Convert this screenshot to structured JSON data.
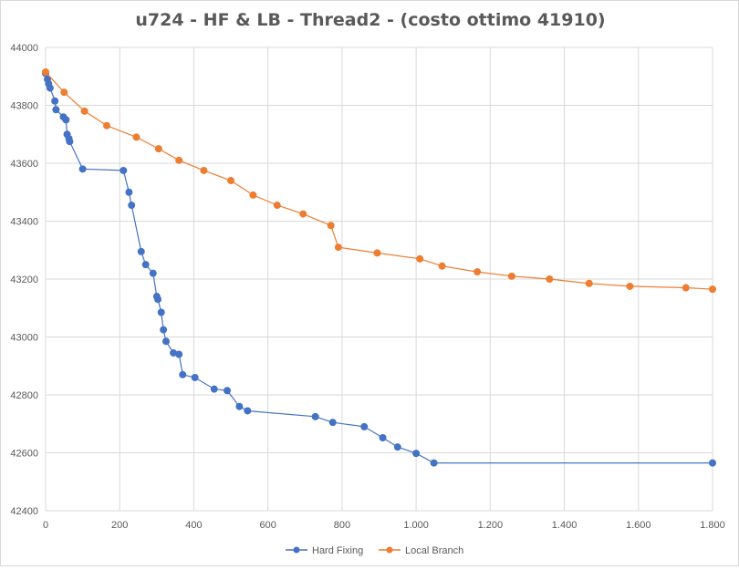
{
  "chart_data": {
    "type": "scatter",
    "title": "u724 - HF & LB - Thread2 - (costo ottimo 41910)",
    "xlabel": "",
    "ylabel": "",
    "xlim": [
      0,
      1800
    ],
    "ylim": [
      42400,
      44000
    ],
    "x_ticks": [
      0,
      200,
      400,
      600,
      800,
      1000,
      1200,
      1400,
      1600,
      1800
    ],
    "x_tick_labels": [
      "0",
      "200",
      "400",
      "600",
      "800",
      "1.000",
      "1.200",
      "1.400",
      "1.600",
      "1.800"
    ],
    "y_ticks": [
      42400,
      42600,
      42800,
      43000,
      43200,
      43400,
      43600,
      43800,
      44000
    ],
    "y_tick_labels": [
      "42400",
      "42600",
      "42800",
      "43000",
      "43200",
      "43400",
      "43600",
      "43800",
      "44000"
    ],
    "grid": true,
    "legend_position": "bottom",
    "series": [
      {
        "name": "Hard Fixing",
        "color": "#4472c4",
        "x": [
          0,
          5,
          8,
          12,
          25,
          28,
          48,
          55,
          58,
          63,
          65,
          100,
          210,
          225,
          232,
          258,
          270,
          290,
          300,
          303,
          312,
          318,
          325,
          345,
          360,
          370,
          403,
          455,
          490,
          523,
          545,
          728,
          775,
          860,
          910,
          950,
          1000,
          1048,
          1800
        ],
        "y": [
          43910,
          43890,
          43875,
          43860,
          43815,
          43785,
          43760,
          43750,
          43700,
          43685,
          43675,
          43580,
          43575,
          43500,
          43455,
          43295,
          43250,
          43220,
          43140,
          43130,
          43085,
          43025,
          42985,
          42945,
          42940,
          42870,
          42860,
          42820,
          42815,
          42760,
          42745,
          42725,
          42705,
          42690,
          42652,
          42620,
          42598,
          42565,
          42565
        ]
      },
      {
        "name": "Local Branch",
        "color": "#ed7d31",
        "x": [
          0,
          50,
          105,
          165,
          245,
          305,
          360,
          427,
          500,
          560,
          625,
          695,
          770,
          790,
          895,
          1010,
          1070,
          1165,
          1258,
          1360,
          1467,
          1577,
          1728,
          1800
        ],
        "y": [
          43915,
          43845,
          43780,
          43730,
          43690,
          43650,
          43610,
          43575,
          43540,
          43490,
          43455,
          43425,
          43385,
          43310,
          43290,
          43270,
          43245,
          43225,
          43210,
          43200,
          43185,
          43175,
          43170,
          43165
        ]
      }
    ]
  }
}
